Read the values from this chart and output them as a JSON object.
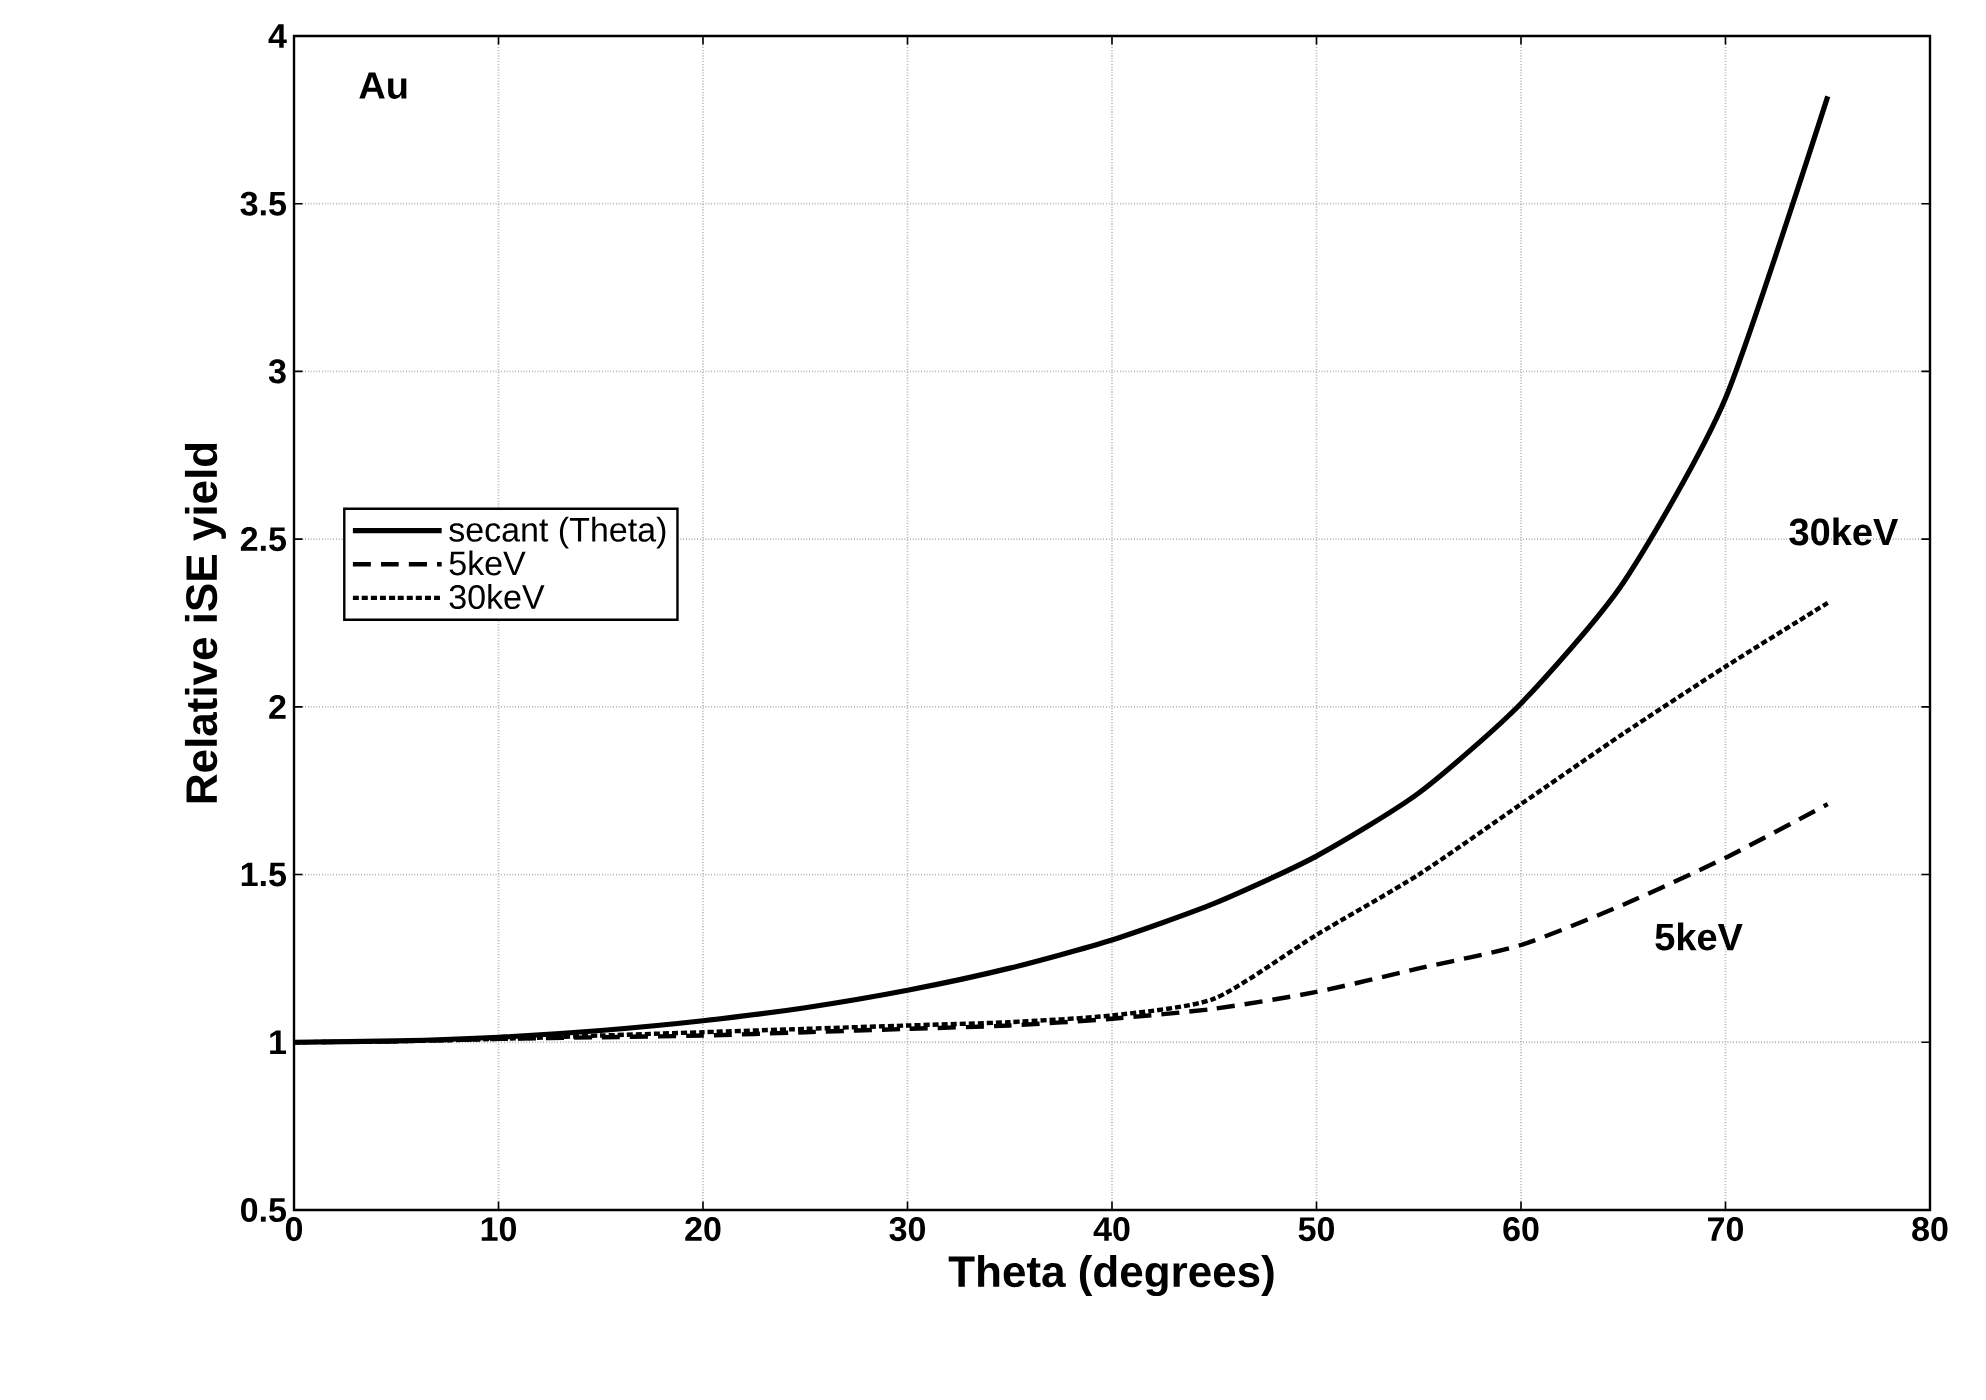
{
  "chart_data": {
    "type": "line",
    "xlabel": "Theta (degrees)",
    "ylabel": "Relative iSE yield",
    "xlim": [
      0,
      80
    ],
    "xticks": [
      0,
      10,
      20,
      30,
      40,
      50,
      60,
      70,
      80
    ],
    "ylim": [
      0.5,
      4
    ],
    "yticks": [
      0.5,
      1,
      1.5,
      2,
      2.5,
      3,
      3.5,
      4
    ],
    "grid": true,
    "legend": "left",
    "marker": "none",
    "x": [
      0,
      5,
      10,
      15,
      20,
      25,
      30,
      35,
      40,
      45,
      50,
      55,
      60,
      65,
      70,
      75
    ],
    "series": [
      {
        "name": "secant (Theta)",
        "color": "#000000",
        "line_style": "solid",
        "values": [
          1,
          1.004,
          1.015,
          1.035,
          1.064,
          1.103,
          1.155,
          1.221,
          1.305,
          1.414,
          1.555,
          1.743,
          2.01,
          2.37,
          2.92,
          3.82
        ]
      },
      {
        "name": "5keV",
        "color": "#000000",
        "line_style": "dashed",
        "values": [
          1,
          1.003,
          1.01,
          1.015,
          1.02,
          1.03,
          1.04,
          1.05,
          1.07,
          1.1,
          1.15,
          1.22,
          1.29,
          1.41,
          1.55,
          1.71
        ]
      },
      {
        "name": "30keV",
        "color": "#000000",
        "line_style": "dotted",
        "values": [
          1,
          1.003,
          1.01,
          1.02,
          1.03,
          1.04,
          1.05,
          1.06,
          1.08,
          1.13,
          1.32,
          1.5,
          1.71,
          1.92,
          2.12,
          2.31
        ]
      }
    ],
    "annotations": [
      "Au",
      "30keV",
      "5keV"
    ]
  }
}
